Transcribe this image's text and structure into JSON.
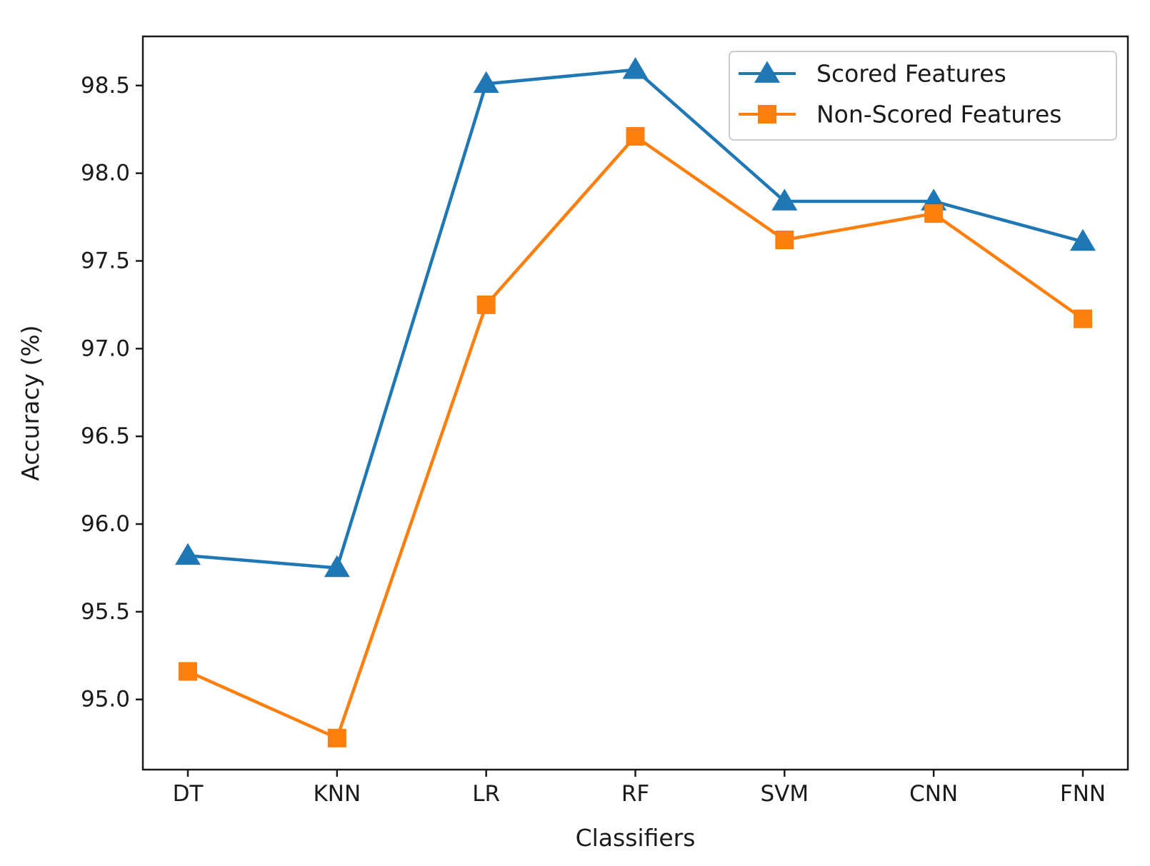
{
  "chart_data": {
    "type": "line",
    "categories": [
      "DT",
      "KNN",
      "LR",
      "RF",
      "SVM",
      "CNN",
      "FNN"
    ],
    "series": [
      {
        "name": "Scored Features",
        "values": [
          95.82,
          95.75,
          98.51,
          98.59,
          97.84,
          97.84,
          97.61
        ],
        "color": "#1f77b4",
        "marker": "triangle"
      },
      {
        "name": "Non-Scored Features",
        "values": [
          95.16,
          94.78,
          97.25,
          98.21,
          97.62,
          97.77,
          97.17
        ],
        "color": "#ff7f0e",
        "marker": "square"
      }
    ],
    "xlabel": "Classifiers",
    "ylabel": "Accuracy (%)",
    "ylim": [
      94.6,
      98.78
    ],
    "yticks": [
      95.0,
      95.5,
      96.0,
      96.5,
      97.0,
      97.5,
      98.0,
      98.5
    ],
    "ytick_labels": [
      "95.0",
      "95.5",
      "96.0",
      "96.5",
      "97.0",
      "97.5",
      "98.0",
      "98.5"
    ],
    "grid": false,
    "legend_position": "top-right"
  }
}
